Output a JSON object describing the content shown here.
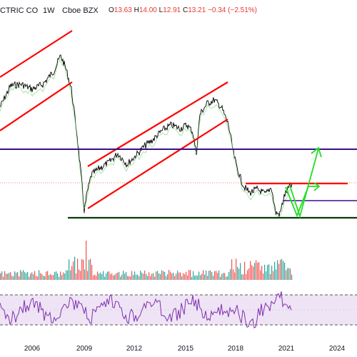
{
  "header": {
    "title": "CTRIC CO",
    "separator": "·",
    "interval": "1W",
    "exchange": "Cboe BZX",
    "ohlc": [
      {
        "label": "O",
        "value": "13.63"
      },
      {
        "label": "H",
        "value": "14.00"
      },
      {
        "label": "L",
        "value": "12.91"
      },
      {
        "label": "C",
        "value": "13.21"
      },
      {
        "label": "",
        "value": "−0.34 (−2.51%)"
      }
    ]
  },
  "x_axis": {
    "ticks": [
      "2006",
      "2009",
      "2012",
      "2015",
      "2018",
      "2021",
      "2024"
    ]
  },
  "colors": {
    "price": "#000000",
    "channel": "#ff0000",
    "horizontal_level": "#3b0f8c",
    "support": "#0a3b0a",
    "projection": "#22dd22",
    "volume_up": "#26a69a",
    "volume_down": "#ef5350",
    "rsi_line": "#7e2fb0",
    "rsi_band": "#efe4f5"
  }
}
